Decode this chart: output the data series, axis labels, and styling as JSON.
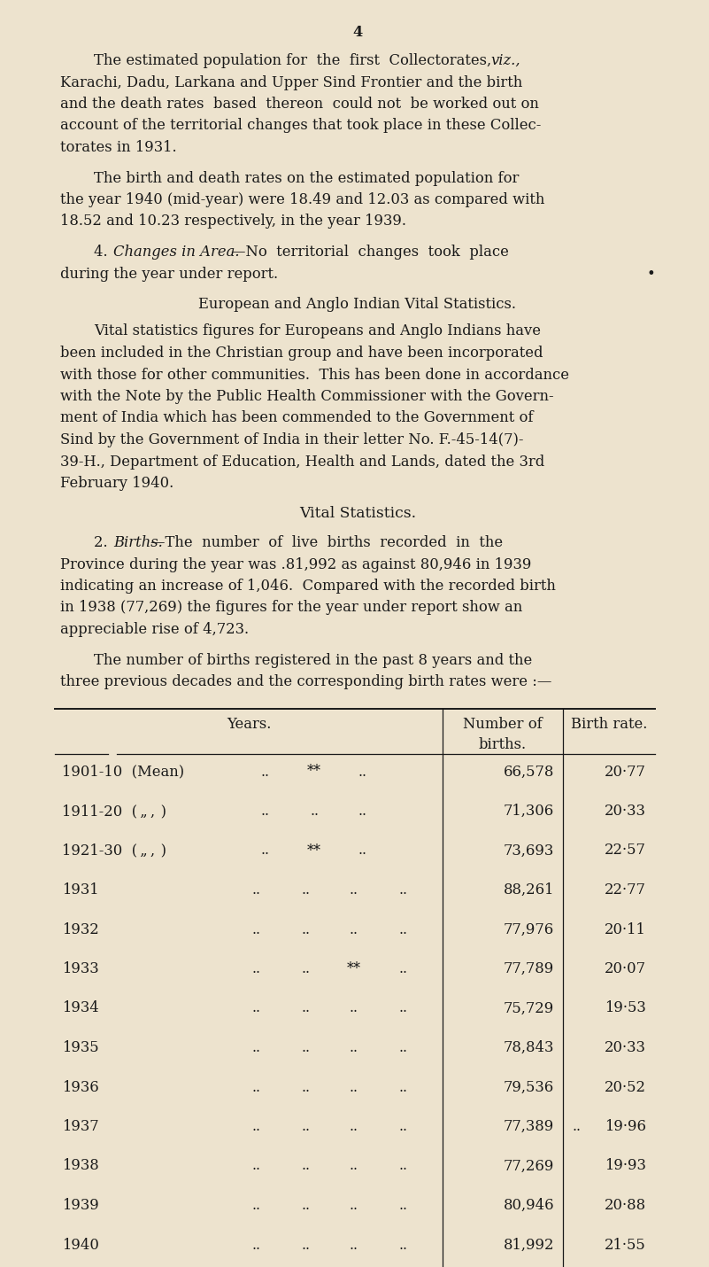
{
  "bg_color": "#ede3ce",
  "text_color": "#1a1a1a",
  "page_number": "4",
  "section1_title": "European and Anglo Indian Vital Statistics.",
  "section2_title": "Vital Statistics.",
  "table_header_years": "Years.",
  "table_header_births": "Number of\nbirths.",
  "table_header_rate": "Birth rate.",
  "table_rows": [
    {
      "year": "1901-10  (Mean)",
      "dots1": "..",
      "dots2": "**",
      "dots3": "..",
      "births": "66,578",
      "rate": "20·77"
    },
    {
      "year": "1911-20  ( „ ,  )",
      "dots1": "..",
      "dots2": "..",
      "dots3": "..",
      "births": "71,306",
      "rate": "20·33"
    },
    {
      "year": "1921-30  ( „ ,  )",
      "dots1": "..",
      "dots2": "**",
      "dots3": "..",
      "births": "73,693",
      "rate": "22·57"
    },
    {
      "year": "1931",
      "dots1": "..",
      "dots2": "..",
      "dots3": "..",
      "dots4": "..",
      "births": "88,261",
      "rate": "22·77"
    },
    {
      "year": "1932",
      "dots1": "..",
      "dots2": "..",
      "dots3": "..",
      "dots4": "..",
      "births": "77,976",
      "rate": "20·11"
    },
    {
      "year": "1933",
      "dots1": "..",
      "dots2": "..",
      "dots3": "**",
      "dots4": "..",
      "births": "77,789",
      "rate": "20·07"
    },
    {
      "year": "1934",
      "dots1": "..",
      "dots2": "..",
      "dots3": "..",
      "dots4": "..",
      "births": "75,729",
      "rate": "19·53"
    },
    {
      "year": "1935",
      "dots1": "..",
      "dots2": "..",
      "dots3": "..",
      "dots4": "..",
      "births": "78,843",
      "rate": "20·33"
    },
    {
      "year": "1936",
      "dots1": "..",
      "dots2": "..",
      "dots3": "..",
      "dots4": "..",
      "births": "79,536",
      "rate": "20·52"
    },
    {
      "year": "1937",
      "dots1": "..",
      "dots2": "..",
      "dots3": "..",
      "dots4": "..",
      "births": "77,389",
      "rate": "19·96",
      "extra_dots": ".."
    },
    {
      "year": "1938",
      "dots1": "..",
      "dots2": "..",
      "dots3": "..",
      "dots4": "..",
      "births": "77,269",
      "rate": "19·93"
    },
    {
      "year": "1939",
      "dots1": "..",
      "dots2": "..",
      "dots3": "..",
      "dots4": "..",
      "births": "80,946",
      "rate": "20·88"
    },
    {
      "year": "1940",
      "dots1": "..",
      "dots2": "..",
      "dots3": "..",
      "dots4": "..",
      "births": "81,992",
      "rate": "21·55"
    }
  ]
}
